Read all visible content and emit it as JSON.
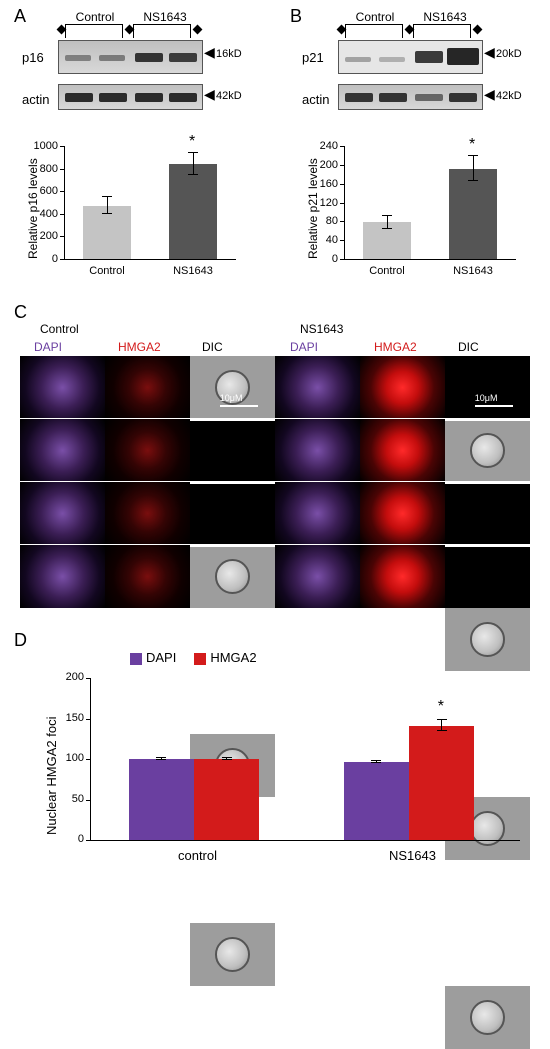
{
  "panelA": {
    "label": "A",
    "groups": [
      "Control",
      "NS1643"
    ],
    "rows": [
      {
        "name": "p16",
        "mw": "16kD",
        "bands": [
          {
            "intensity": 0.35
          },
          {
            "intensity": 0.38
          },
          {
            "intensity": 0.85
          },
          {
            "intensity": 0.8
          }
        ],
        "bg": "#cfcfcf"
      },
      {
        "name": "actin",
        "mw": "42kD",
        "bands": [
          {
            "intensity": 0.9
          },
          {
            "intensity": 0.9
          },
          {
            "intensity": 0.9
          },
          {
            "intensity": 0.9
          }
        ],
        "bg": "#dedede"
      }
    ],
    "chart": {
      "type": "bar",
      "ylabel": "Relative p16 levels",
      "ylim": [
        0,
        1000
      ],
      "ytick_step": 200,
      "categories": [
        "Control",
        "NS1643"
      ],
      "values": [
        470,
        840
      ],
      "errors": [
        75,
        95
      ],
      "bar_colors": [
        "#c4c4c4",
        "#555555"
      ],
      "sig_marks": [
        null,
        "*"
      ],
      "bar_width": 0.55,
      "label_fontsize": 12,
      "axis_color": "#000000"
    }
  },
  "panelB": {
    "label": "B",
    "groups": [
      "Control",
      "NS1643"
    ],
    "rows": [
      {
        "name": "p21",
        "mw": "20kD",
        "bands": [
          {
            "intensity": 0.2
          },
          {
            "intensity": 0.15
          },
          {
            "intensity": 0.8
          },
          {
            "intensity": 0.95
          }
        ],
        "bg": "#e3e3e3"
      },
      {
        "name": "actin",
        "mw": "42kD",
        "bands": [
          {
            "intensity": 0.85
          },
          {
            "intensity": 0.85
          },
          {
            "intensity": 0.55
          },
          {
            "intensity": 0.85
          }
        ],
        "bg": "#dedede"
      }
    ],
    "chart": {
      "type": "bar",
      "ylabel": "Relative  p21  levels",
      "ylim": [
        0,
        240
      ],
      "ytick_step": 40,
      "categories": [
        "Control",
        "NS1643"
      ],
      "values": [
        78,
        192
      ],
      "errors": [
        14,
        26
      ],
      "bar_colors": [
        "#c4c4c4",
        "#555555"
      ],
      "sig_marks": [
        null,
        "*"
      ],
      "bar_width": 0.55,
      "label_fontsize": 12,
      "axis_color": "#000000"
    }
  },
  "panelC": {
    "label": "C",
    "treatments": [
      "Control",
      "NS1643"
    ],
    "channels": [
      "DAPI",
      "HMGA2",
      "DIC"
    ],
    "channel_colors": [
      "#6a3fa0",
      "#d31b1b",
      "#000000"
    ],
    "rows": 4,
    "scale_bar": "10μM",
    "hmga2_intensity": {
      "Control": "low",
      "NS1643": "high"
    },
    "background_color": "#000000",
    "cell_border_color": "#ffffff"
  },
  "panelD": {
    "label": "D",
    "chart": {
      "type": "bar",
      "ylabel": "Nuclear HMGA2 foci",
      "ylim": [
        0,
        200
      ],
      "ytick_step": 50,
      "groups": [
        "control",
        "NS1643"
      ],
      "series": [
        {
          "name": "DAPI",
          "color": "#6a3fa0",
          "values": [
            100,
            96
          ],
          "errors": [
            1,
            1
          ]
        },
        {
          "name": "HMGA2",
          "color": "#d31b1b",
          "values": [
            100,
            141
          ],
          "errors": [
            1,
            7
          ]
        }
      ],
      "sig_marks": {
        "NS1643": {
          "HMGA2": "*"
        }
      },
      "bar_width": 0.38,
      "label_fontsize": 13,
      "axis_color": "#000000"
    }
  }
}
